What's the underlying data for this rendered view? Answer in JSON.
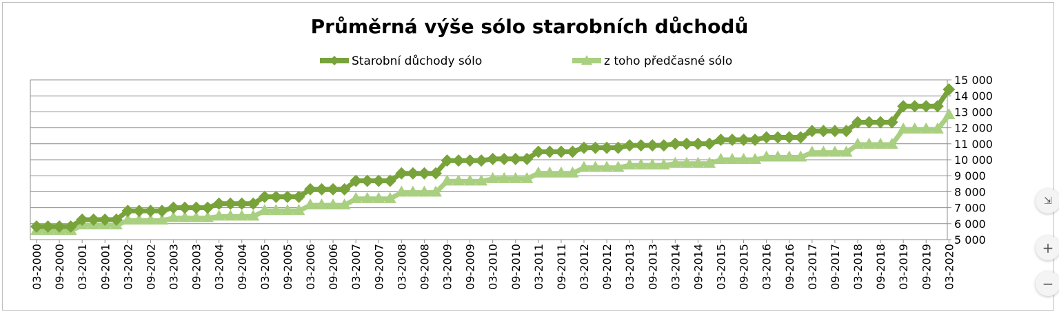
{
  "chart_data": {
    "type": "line",
    "title": "Průměrná výše sólo starobních důchodů",
    "xlabel": "",
    "ylabel": "",
    "ylim": [
      5000,
      15000
    ],
    "ytick_step": 1000,
    "yticks": [
      "5 000",
      "6 000",
      "7 000",
      "8 000",
      "9 000",
      "10 000",
      "11 000",
      "12 000",
      "13 000",
      "14 000",
      "15 000"
    ],
    "grid": true,
    "legend_position": "top",
    "x_labels": [
      "03-2000",
      "09-2000",
      "03-2001",
      "09-2001",
      "03-2002",
      "09-2002",
      "03-2003",
      "09-2003",
      "03-2004",
      "09-2004",
      "03-2005",
      "09-2005",
      "03-2006",
      "09-2006",
      "03-2007",
      "09-2007",
      "03-2008",
      "09-2008",
      "03-2009",
      "09-2009",
      "03-2010",
      "09-2010",
      "03-2011",
      "09-2011",
      "03-2012",
      "09-2012",
      "03-2013",
      "09-2013",
      "03-2014",
      "09-2014",
      "03-2015",
      "09-2015",
      "03-2016",
      "09-2016",
      "03-2017",
      "09-2017",
      "03-2018",
      "09-2018",
      "03-2019",
      "09-2019",
      "03-2020"
    ],
    "series": [
      {
        "name": "Starobní důchody sólo",
        "color": "#77a33a",
        "marker": "diamond",
        "annual_values": [
          5820,
          6250,
          6800,
          7000,
          7250,
          7680,
          8150,
          8680,
          9150,
          9950,
          10050,
          10500,
          10750,
          10900,
          11000,
          11250,
          11400,
          11800,
          12350,
          13350
        ],
        "last_value": 14400
      },
      {
        "name": "z toho předčasné sólo",
        "color": "#a9cf80",
        "marker": "triangle",
        "annual_values": [
          5550,
          5900,
          6200,
          6350,
          6450,
          6800,
          7150,
          7550,
          7950,
          8650,
          8800,
          9150,
          9500,
          9650,
          9750,
          10000,
          10150,
          10450,
          10950,
          11900
        ],
        "last_value": 12800
      }
    ]
  },
  "controls": {
    "collapse_icon": "⇲",
    "zoom_in_label": "+",
    "zoom_out_label": "−"
  }
}
